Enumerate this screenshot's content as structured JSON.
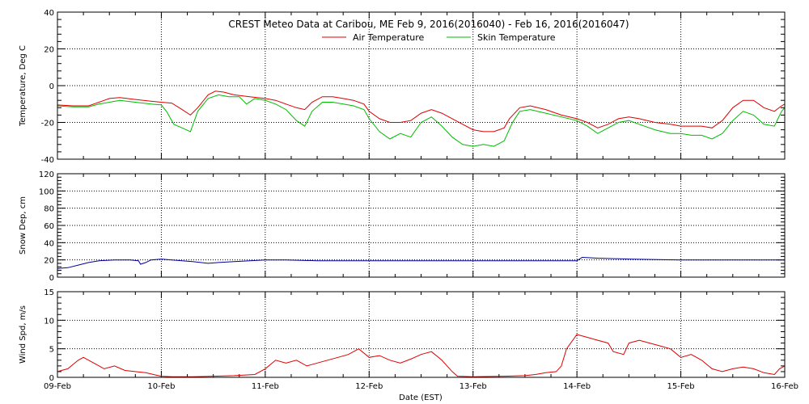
{
  "title": "CREST Meteo Data at Caribou, ME   Feb  9, 2016(2016040) - Feb 16, 2016(2016047)",
  "xlabel": "Date (EST)",
  "x_ticks": [
    "09-Feb",
    "10-Feb",
    "11-Feb",
    "12-Feb",
    "13-Feb",
    "14-Feb",
    "15-Feb",
    "16-Feb"
  ],
  "colors": {
    "air": "#dd0000",
    "skin": "#00bb00",
    "snow": "#000099",
    "wind": "#dd0000",
    "grid": "#000000"
  },
  "chart_data": [
    {
      "type": "line",
      "ylabel": "Temperature, Deg C",
      "ylim": [
        -40,
        40
      ],
      "y_ticks": [
        -40,
        -20,
        0,
        20,
        40
      ],
      "x_unit": "days since Feb 9",
      "xlim": [
        0,
        7
      ],
      "legend": "top-center",
      "grid": true,
      "series": [
        {
          "name": "Air Temperature",
          "color": "#dd0000",
          "points": [
            [
              0,
              -10.5
            ],
            [
              0.15,
              -11
            ],
            [
              0.3,
              -11
            ],
            [
              0.4,
              -9
            ],
            [
              0.5,
              -7
            ],
            [
              0.6,
              -6.5
            ],
            [
              0.75,
              -7.5
            ],
            [
              0.9,
              -8.5
            ],
            [
              1.0,
              -9
            ],
            [
              1.1,
              -9.5
            ],
            [
              1.2,
              -13
            ],
            [
              1.28,
              -16
            ],
            [
              1.35,
              -12
            ],
            [
              1.45,
              -5
            ],
            [
              1.52,
              -3
            ],
            [
              1.6,
              -3.5
            ],
            [
              1.7,
              -5
            ],
            [
              1.85,
              -6
            ],
            [
              2.0,
              -7
            ],
            [
              2.1,
              -8
            ],
            [
              2.2,
              -10
            ],
            [
              2.3,
              -12
            ],
            [
              2.38,
              -13
            ],
            [
              2.45,
              -9
            ],
            [
              2.55,
              -6
            ],
            [
              2.65,
              -6
            ],
            [
              2.75,
              -7
            ],
            [
              2.85,
              -8
            ],
            [
              2.95,
              -10
            ],
            [
              3.0,
              -14
            ],
            [
              3.1,
              -18
            ],
            [
              3.2,
              -20
            ],
            [
              3.3,
              -20
            ],
            [
              3.4,
              -19
            ],
            [
              3.5,
              -15
            ],
            [
              3.6,
              -13
            ],
            [
              3.7,
              -15
            ],
            [
              3.8,
              -18
            ],
            [
              3.9,
              -21
            ],
            [
              4.0,
              -24
            ],
            [
              4.1,
              -25
            ],
            [
              4.2,
              -25
            ],
            [
              4.3,
              -23
            ],
            [
              4.35,
              -18
            ],
            [
              4.45,
              -12
            ],
            [
              4.55,
              -11
            ],
            [
              4.7,
              -13
            ],
            [
              4.85,
              -16
            ],
            [
              5.0,
              -18
            ],
            [
              5.1,
              -20
            ],
            [
              5.2,
              -23
            ],
            [
              5.3,
              -21
            ],
            [
              5.4,
              -18
            ],
            [
              5.5,
              -17
            ],
            [
              5.6,
              -18
            ],
            [
              5.75,
              -20
            ],
            [
              5.9,
              -21
            ],
            [
              6.0,
              -22
            ],
            [
              6.1,
              -22
            ],
            [
              6.2,
              -22
            ],
            [
              6.3,
              -23
            ],
            [
              6.4,
              -19
            ],
            [
              6.5,
              -12
            ],
            [
              6.6,
              -8
            ],
            [
              6.7,
              -8
            ],
            [
              6.8,
              -12
            ],
            [
              6.9,
              -14
            ],
            [
              6.97,
              -11
            ],
            [
              7.0,
              -10
            ]
          ]
        },
        {
          "name": "Skin Temperature",
          "color": "#00bb00",
          "points": [
            [
              0,
              -11
            ],
            [
              0.15,
              -11.5
            ],
            [
              0.3,
              -11.5
            ],
            [
              0.4,
              -10
            ],
            [
              0.5,
              -9
            ],
            [
              0.6,
              -8
            ],
            [
              0.75,
              -9
            ],
            [
              0.9,
              -10
            ],
            [
              1.0,
              -10.5
            ],
            [
              1.05,
              -14
            ],
            [
              1.12,
              -21
            ],
            [
              1.2,
              -23
            ],
            [
              1.28,
              -25
            ],
            [
              1.35,
              -14
            ],
            [
              1.45,
              -7
            ],
            [
              1.55,
              -5
            ],
            [
              1.65,
              -6
            ],
            [
              1.75,
              -6
            ],
            [
              1.82,
              -10
            ],
            [
              1.9,
              -7
            ],
            [
              2.0,
              -8
            ],
            [
              2.1,
              -10
            ],
            [
              2.2,
              -13
            ],
            [
              2.3,
              -19
            ],
            [
              2.38,
              -22
            ],
            [
              2.45,
              -14
            ],
            [
              2.55,
              -9
            ],
            [
              2.65,
              -9
            ],
            [
              2.75,
              -10
            ],
            [
              2.85,
              -11
            ],
            [
              2.95,
              -13
            ],
            [
              3.0,
              -18
            ],
            [
              3.1,
              -25
            ],
            [
              3.2,
              -29
            ],
            [
              3.3,
              -26
            ],
            [
              3.4,
              -28
            ],
            [
              3.5,
              -20
            ],
            [
              3.6,
              -17
            ],
            [
              3.7,
              -22
            ],
            [
              3.8,
              -28
            ],
            [
              3.9,
              -32
            ],
            [
              4.0,
              -33
            ],
            [
              4.1,
              -32
            ],
            [
              4.2,
              -33
            ],
            [
              4.3,
              -30
            ],
            [
              4.38,
              -20
            ],
            [
              4.45,
              -14
            ],
            [
              4.55,
              -13
            ],
            [
              4.7,
              -15
            ],
            [
              4.85,
              -17
            ],
            [
              5.0,
              -19
            ],
            [
              5.1,
              -22
            ],
            [
              5.2,
              -26
            ],
            [
              5.3,
              -23
            ],
            [
              5.4,
              -20
            ],
            [
              5.5,
              -19
            ],
            [
              5.6,
              -21
            ],
            [
              5.75,
              -24
            ],
            [
              5.9,
              -26
            ],
            [
              6.0,
              -26
            ],
            [
              6.1,
              -27
            ],
            [
              6.2,
              -27
            ],
            [
              6.3,
              -29
            ],
            [
              6.4,
              -26
            ],
            [
              6.5,
              -19
            ],
            [
              6.6,
              -14
            ],
            [
              6.7,
              -16
            ],
            [
              6.8,
              -21
            ],
            [
              6.9,
              -22
            ],
            [
              6.97,
              -14
            ],
            [
              7.0,
              -12
            ]
          ]
        }
      ]
    },
    {
      "type": "line",
      "ylabel": "Snow Dep, cm",
      "ylim": [
        0,
        120
      ],
      "y_ticks": [
        0,
        20,
        40,
        60,
        80,
        100,
        120
      ],
      "x_unit": "days since Feb 9",
      "xlim": [
        0,
        7
      ],
      "grid": true,
      "series": [
        {
          "name": "Snow Depth",
          "color": "#000099",
          "points": [
            [
              0,
              10
            ],
            [
              0.1,
              11
            ],
            [
              0.2,
              14
            ],
            [
              0.3,
              17
            ],
            [
              0.4,
              19
            ],
            [
              0.55,
              20
            ],
            [
              0.7,
              20
            ],
            [
              0.78,
              19
            ],
            [
              0.8,
              15
            ],
            [
              0.85,
              17
            ],
            [
              0.9,
              20
            ],
            [
              1.0,
              21
            ],
            [
              1.1,
              20
            ],
            [
              1.2,
              19
            ],
            [
              1.3,
              18
            ],
            [
              1.45,
              16
            ],
            [
              1.55,
              17
            ],
            [
              1.7,
              18
            ],
            [
              1.85,
              19
            ],
            [
              2.0,
              20
            ],
            [
              2.2,
              20
            ],
            [
              2.5,
              19
            ],
            [
              3.0,
              19
            ],
            [
              3.5,
              19
            ],
            [
              4.0,
              19
            ],
            [
              4.5,
              19
            ],
            [
              5.0,
              19
            ],
            [
              5.05,
              23
            ],
            [
              5.2,
              22
            ],
            [
              5.5,
              21
            ],
            [
              6.0,
              20
            ],
            [
              6.5,
              20
            ],
            [
              7.0,
              20
            ]
          ]
        }
      ]
    },
    {
      "type": "line",
      "ylabel": "Wind Spd, m/s",
      "ylim": [
        0,
        15
      ],
      "y_ticks": [
        0,
        5,
        10,
        15
      ],
      "x_unit": "days since Feb 9",
      "xlim": [
        0,
        7
      ],
      "grid": true,
      "series": [
        {
          "name": "Wind Speed",
          "color": "#dd0000",
          "points": [
            [
              0,
              1
            ],
            [
              0.1,
              1.5
            ],
            [
              0.2,
              3
            ],
            [
              0.25,
              3.5
            ],
            [
              0.35,
              2.5
            ],
            [
              0.45,
              1.5
            ],
            [
              0.55,
              2
            ],
            [
              0.65,
              1.2
            ],
            [
              0.75,
              1
            ],
            [
              0.85,
              0.8
            ],
            [
              0.95,
              0.4
            ],
            [
              1.0,
              0.2
            ],
            [
              1.1,
              0.1
            ],
            [
              1.3,
              0.1
            ],
            [
              1.5,
              0.2
            ],
            [
              1.7,
              0.3
            ],
            [
              1.9,
              0.5
            ],
            [
              2.0,
              1.5
            ],
            [
              2.1,
              3
            ],
            [
              2.2,
              2.5
            ],
            [
              2.3,
              3
            ],
            [
              2.4,
              2
            ],
            [
              2.5,
              2.5
            ],
            [
              2.6,
              3
            ],
            [
              2.7,
              3.5
            ],
            [
              2.8,
              4
            ],
            [
              2.9,
              5
            ],
            [
              3.0,
              3.5
            ],
            [
              3.1,
              3.8
            ],
            [
              3.2,
              3
            ],
            [
              3.3,
              2.5
            ],
            [
              3.4,
              3.2
            ],
            [
              3.5,
              4
            ],
            [
              3.6,
              4.5
            ],
            [
              3.7,
              3
            ],
            [
              3.75,
              2
            ],
            [
              3.8,
              1
            ],
            [
              3.85,
              0.2
            ],
            [
              4.0,
              0.1
            ],
            [
              4.3,
              0.2
            ],
            [
              4.5,
              0.3
            ],
            [
              4.6,
              0.5
            ],
            [
              4.7,
              0.8
            ],
            [
              4.8,
              1
            ],
            [
              4.85,
              2
            ],
            [
              4.9,
              5
            ],
            [
              5.0,
              7.5
            ],
            [
              5.1,
              7
            ],
            [
              5.2,
              6.5
            ],
            [
              5.3,
              6
            ],
            [
              5.35,
              4.5
            ],
            [
              5.45,
              4
            ],
            [
              5.5,
              6
            ],
            [
              5.6,
              6.5
            ],
            [
              5.7,
              6
            ],
            [
              5.8,
              5.5
            ],
            [
              5.9,
              5
            ],
            [
              6.0,
              3.5
            ],
            [
              6.1,
              4
            ],
            [
              6.2,
              3
            ],
            [
              6.3,
              1.5
            ],
            [
              6.4,
              1
            ],
            [
              6.5,
              1.5
            ],
            [
              6.6,
              1.8
            ],
            [
              6.7,
              1.5
            ],
            [
              6.8,
              0.8
            ],
            [
              6.9,
              0.5
            ],
            [
              6.95,
              1.5
            ],
            [
              7.0,
              2
            ]
          ]
        }
      ]
    }
  ]
}
